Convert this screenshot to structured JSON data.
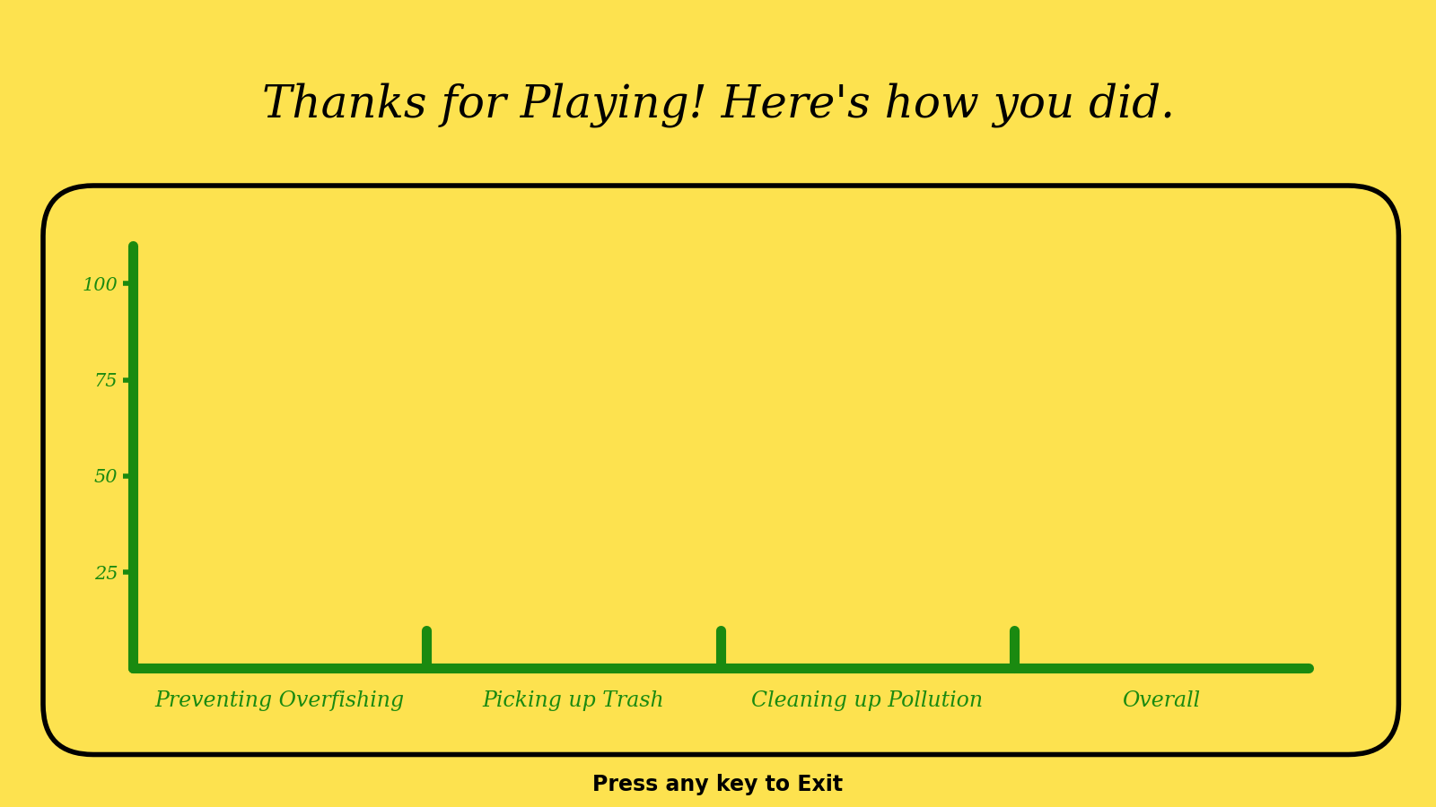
{
  "chart_data": {
    "type": "bar",
    "title": "Thanks for Playing! Here's how you did.",
    "categories": [
      "Preventing Overfishing",
      "Picking up Trash",
      "Cleaning up Pollution",
      "Overall"
    ],
    "values": [
      0,
      0,
      0,
      0
    ],
    "color": "#1a8a10",
    "ylim": [
      0,
      110
    ],
    "yticks": [
      25,
      50,
      75,
      100
    ],
    "grid": false
  },
  "footer": "Press any key to Exit"
}
